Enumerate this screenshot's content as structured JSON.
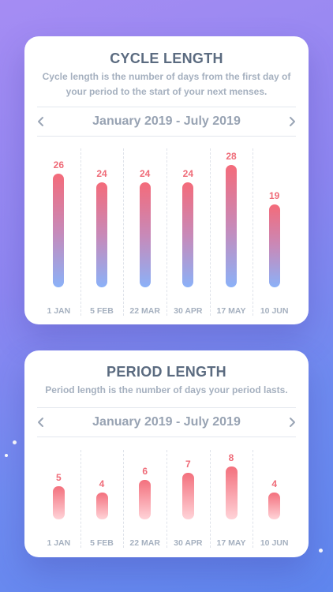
{
  "cycle": {
    "title": "CYCLE LENGTH",
    "desc_line1": "Cycle length is the number of days from the first day of",
    "desc_line2": "your period to the start of your next menses.",
    "range": "January 2019 - July 2019",
    "chart_data": {
      "type": "bar",
      "categories": [
        "1 JAN",
        "5 FEB",
        "22 MAR",
        "30 APR",
        "17 MAY",
        "10 JUN"
      ],
      "values": [
        26,
        24,
        24,
        24,
        28,
        19
      ]
    }
  },
  "period": {
    "title": "PERIOD LENGTH",
    "desc_line1": "Period length is the number of days your period lasts.",
    "range": "January 2019 - July 2019",
    "chart_data": {
      "type": "bar",
      "categories": [
        "1 JAN",
        "5 FEB",
        "22 MAR",
        "30 APR",
        "17 MAY",
        "10 JUN"
      ],
      "values": [
        5,
        4,
        6,
        7,
        8,
        4
      ]
    }
  },
  "colors": {
    "bar_top": "#f46b7a",
    "bar_bottom": "#8bb1f8",
    "value_text": "#ef6b78"
  },
  "icons": {
    "prev": "chevron-left-icon",
    "next": "chevron-right-icon"
  }
}
